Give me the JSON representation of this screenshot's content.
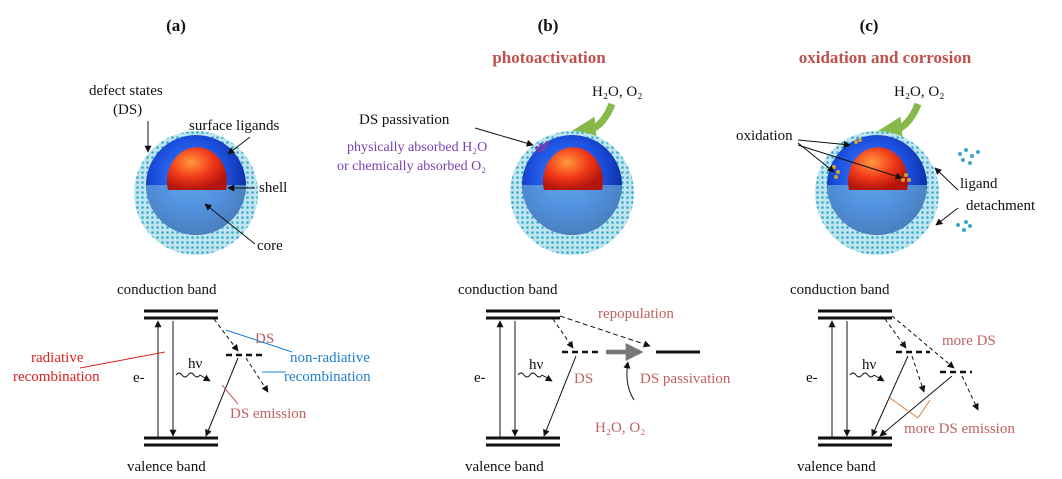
{
  "panels": [
    {
      "label": "(a)",
      "heading": "",
      "labels": {
        "defect_states_line1": "defect states",
        "defect_states_line2": "(DS)",
        "surface_ligands": "surface ligands",
        "shell": "shell",
        "core": "core",
        "conduction_band": "conduction band",
        "valence_band": "valence band",
        "ds": "DS",
        "hv": "hν",
        "electron": "e-",
        "radiative_line1": "radiative",
        "radiative_line2": "recombination",
        "nonradiative_line1": "non-radiative",
        "nonradiative_line2": "recombination",
        "ds_emission": "DS emission"
      }
    },
    {
      "label": "(b)",
      "heading": "photoactivation",
      "labels": {
        "reactants": "H₂O, O₂",
        "ds_passivation_top": "DS passivation",
        "physically_absorbed": "physically absorbed H₂O",
        "chemically_absorbed": "or chemically absorbed O₂",
        "conduction_band": "conduction band",
        "valence_band": "valence band",
        "repopulation": "repopulation",
        "hv": "hν",
        "electron": "e-",
        "ds": "DS",
        "ds_passivation": "DS passivation",
        "reactants_bottom": "H₂O, O₂"
      }
    },
    {
      "label": "(c)",
      "heading": "oxidation and corrosion",
      "labels": {
        "reactants": "H₂O, O₂",
        "oxidation": "oxidation",
        "ligand": "ligand",
        "detachment": "detachment",
        "conduction_band": "conduction band",
        "valence_band": "valence band",
        "more_ds": "more DS",
        "hv": "hν",
        "electron": "e-",
        "more_ds_emission": "more DS emission"
      }
    }
  ],
  "colors": {
    "heading_red": "#c0504d",
    "label_red": "#e02020",
    "label_pink": "#c06060",
    "label_blue": "#1f7fd0",
    "label_purple": "#7a3fb0",
    "arrow_green": "#86b94a",
    "ink": "#111111"
  }
}
